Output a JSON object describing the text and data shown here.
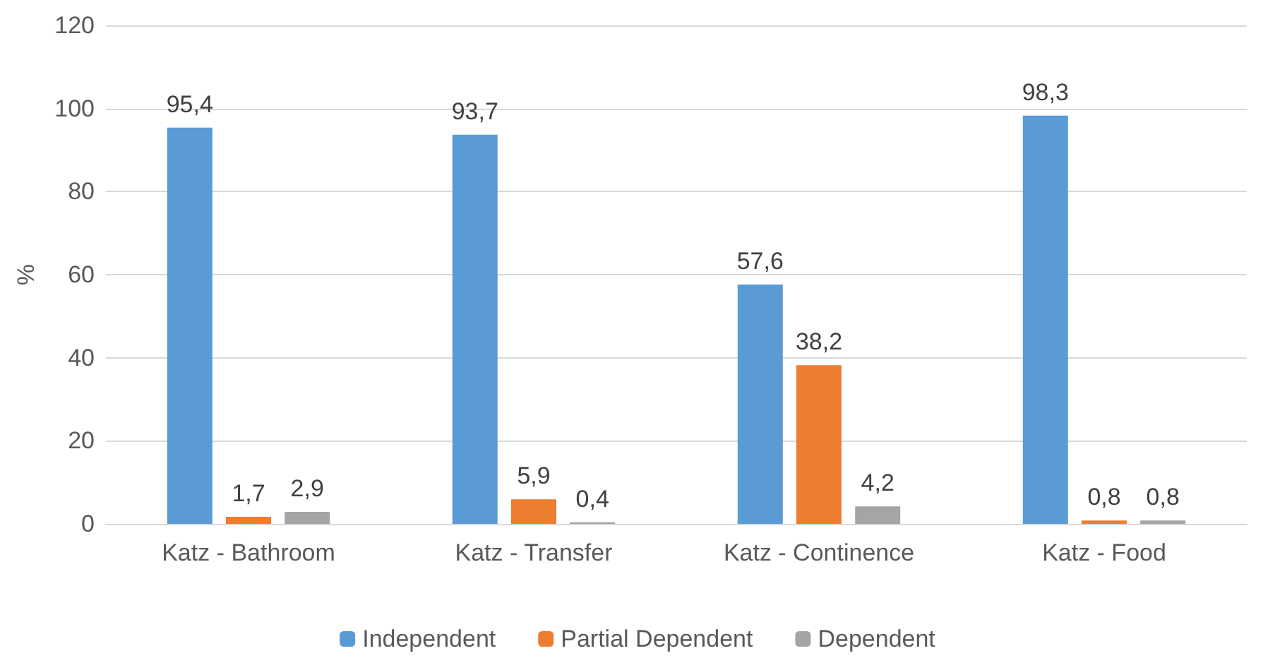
{
  "chart_data": {
    "type": "bar",
    "ylabel": "%",
    "categories": [
      "Katz - Bathroom",
      "Katz - Transfer",
      "Katz - Continence",
      "Katz - Food"
    ],
    "series": [
      {
        "name": "Independent",
        "color": "#5b9bd5",
        "values": [
          95.4,
          93.7,
          57.6,
          98.3
        ],
        "value_labels": [
          "95,4",
          "93,7",
          "57,6",
          "98,3"
        ]
      },
      {
        "name": "Partial Dependent",
        "color": "#ed7d31",
        "values": [
          1.7,
          5.9,
          38.2,
          0.8
        ],
        "value_labels": [
          "1,7",
          "5,9",
          "38,2",
          "0,8"
        ]
      },
      {
        "name": "Dependent",
        "color": "#a5a5a5",
        "values": [
          2.9,
          0.4,
          4.2,
          0.8
        ],
        "value_labels": [
          "2,9",
          "0,4",
          "4,2",
          "0,8"
        ]
      }
    ],
    "ylim": [
      0,
      120
    ],
    "yticks": [
      0,
      20,
      40,
      60,
      80,
      100,
      120
    ],
    "grid": "y",
    "legend": "bottom"
  }
}
